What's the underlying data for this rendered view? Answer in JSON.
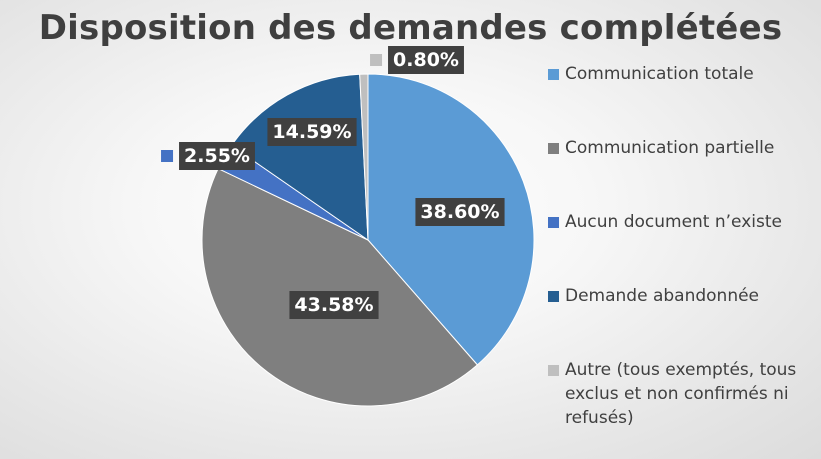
{
  "chart_data": {
    "type": "pie",
    "title": "Disposition des demandes complétées",
    "legend_position": "right",
    "slices": [
      {
        "name": "Communication totale",
        "value": 38.6,
        "label": "38.60%",
        "color": "#5b9bd5"
      },
      {
        "name": "Communication partielle",
        "value": 43.58,
        "label": "43.58%",
        "color": "#7f7f7f"
      },
      {
        "name": "Aucun document n’existe",
        "value": 2.55,
        "label": "2.55%",
        "color": "#4472c4"
      },
      {
        "name": "Demande abandonnée",
        "value": 14.59,
        "label": "14.59%",
        "color": "#255e91"
      },
      {
        "name": "Autre (tous exemptés, tous exclus et non confirmés ni refusés)",
        "value": 0.8,
        "label": "0.80%",
        "color": "#bfbfbf"
      }
    ]
  }
}
